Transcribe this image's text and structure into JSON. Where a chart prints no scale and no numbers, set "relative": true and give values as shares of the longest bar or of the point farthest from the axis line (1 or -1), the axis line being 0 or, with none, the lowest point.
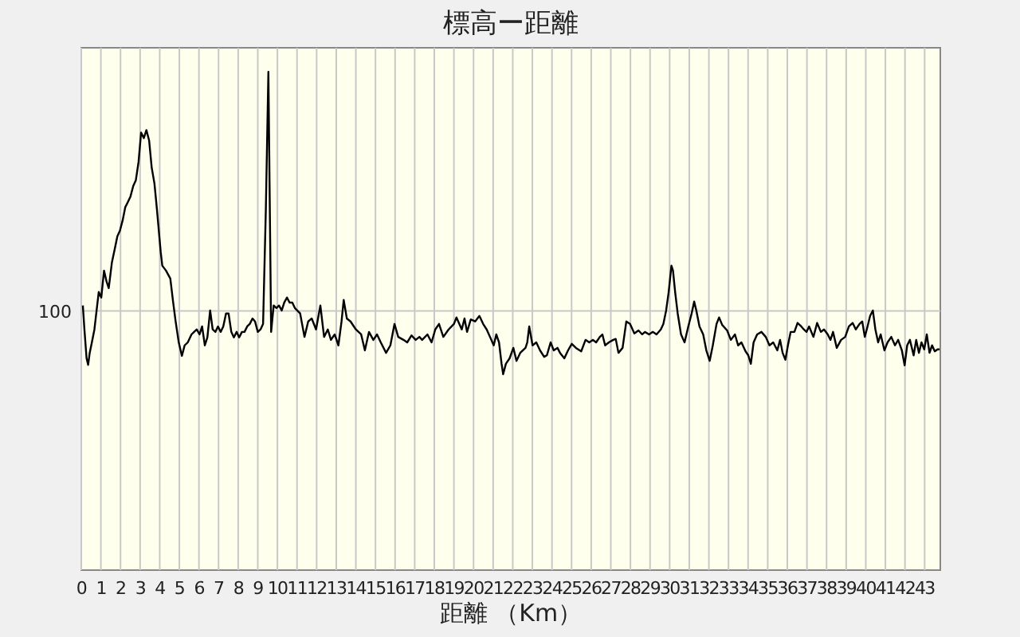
{
  "chart_data": {
    "type": "line",
    "title": "標高ー距離",
    "xlabel": "距離 （Km）",
    "relative": true,
    "grid": "x",
    "xlim": [
      0,
      43.8
    ],
    "xticks": [
      0,
      1,
      2,
      3,
      4,
      5,
      6,
      7,
      8,
      9,
      10,
      11,
      12,
      13,
      14,
      15,
      16,
      17,
      18,
      19,
      20,
      21,
      22,
      23,
      24,
      25,
      26,
      27,
      28,
      29,
      30,
      31,
      32,
      33,
      34,
      35,
      36,
      37,
      38,
      39,
      40,
      41,
      42,
      43
    ],
    "ref_lines": [
      {
        "axis": "y",
        "value": 0.52,
        "color": "#c8c8c8"
      }
    ],
    "annotations": [
      "100"
    ],
    "series": [
      {
        "color": "#000000",
        "x": [
          0.08,
          0.16,
          0.27,
          0.35,
          0.43,
          0.54,
          0.67,
          0.81,
          0.89,
          1.02,
          1.16,
          1.29,
          1.4,
          1.56,
          1.7,
          1.84,
          1.97,
          2.11,
          2.24,
          2.38,
          2.51,
          2.65,
          2.78,
          2.92,
          3.05,
          3.19,
          3.32,
          3.46,
          3.59,
          3.73,
          3.86,
          4.05,
          4.13,
          4.32,
          4.54,
          4.67,
          4.81,
          4.97,
          5.13,
          5.27,
          5.43,
          5.62,
          5.75,
          5.89,
          6.03,
          6.16,
          6.3,
          6.43,
          6.57,
          6.7,
          6.84,
          6.97,
          7.11,
          7.24,
          7.38,
          7.51,
          7.65,
          7.78,
          7.92,
          8.05,
          8.19,
          8.32,
          8.46,
          8.59,
          8.73,
          8.86,
          9.0,
          9.14,
          9.27,
          9.41,
          9.54,
          9.6,
          9.68,
          9.81,
          9.95,
          10.08,
          10.22,
          10.35,
          10.49,
          10.62,
          10.76,
          10.89,
          11.16,
          11.38,
          11.57,
          11.75,
          11.97,
          12.19,
          12.38,
          12.57,
          12.73,
          12.92,
          13.11,
          13.27,
          13.38,
          13.54,
          13.73,
          14.0,
          14.27,
          14.46,
          14.67,
          14.89,
          15.08,
          15.27,
          15.54,
          15.76,
          15.97,
          16.16,
          16.43,
          16.62,
          16.84,
          17.05,
          17.24,
          17.38,
          17.65,
          17.86,
          18.05,
          18.24,
          18.46,
          18.73,
          19.0,
          19.13,
          19.4,
          19.54,
          19.67,
          19.86,
          20.08,
          20.3,
          20.49,
          20.67,
          20.84,
          21.03,
          21.16,
          21.3,
          21.43,
          21.51,
          21.65,
          21.84,
          22.03,
          22.19,
          22.38,
          22.65,
          22.74,
          22.84,
          23.01,
          23.2,
          23.39,
          23.6,
          23.74,
          23.93,
          24.09,
          24.28,
          24.41,
          24.63,
          24.82,
          25.01,
          25.22,
          25.49,
          25.71,
          25.9,
          26.09,
          26.25,
          26.44,
          26.57,
          26.71,
          26.9,
          27.12,
          27.25,
          27.39,
          27.6,
          27.79,
          27.98,
          28.2,
          28.41,
          28.6,
          28.74,
          28.95,
          29.14,
          29.33,
          29.55,
          29.68,
          29.82,
          29.95,
          30.09,
          30.17,
          30.28,
          30.41,
          30.58,
          30.76,
          30.95,
          31.12,
          31.25,
          31.36,
          31.52,
          31.71,
          31.87,
          32.04,
          32.2,
          32.39,
          32.52,
          32.68,
          32.93,
          33.12,
          33.33,
          33.49,
          33.66,
          33.87,
          34.01,
          34.14,
          34.28,
          34.46,
          34.68,
          34.9,
          35.09,
          35.28,
          35.49,
          35.63,
          35.76,
          35.9,
          36.03,
          36.17,
          36.36,
          36.52,
          36.71,
          36.84,
          36.98,
          37.11,
          37.33,
          37.52,
          37.71,
          37.87,
          38.06,
          38.2,
          38.33,
          38.52,
          38.74,
          38.95,
          39.14,
          39.33,
          39.49,
          39.68,
          39.82,
          39.95,
          40.09,
          40.22,
          40.36,
          40.49,
          40.63,
          40.76,
          40.95,
          41.11,
          41.3,
          41.49,
          41.65,
          41.84,
          41.98,
          42.11,
          42.25,
          42.44,
          42.57,
          42.71,
          42.84,
          42.98,
          43.11,
          43.25,
          43.38,
          43.52,
          43.66,
          43.76
        ],
        "values": [
          0.531,
          0.483,
          0.425,
          0.412,
          0.436,
          0.457,
          0.483,
          0.531,
          0.558,
          0.547,
          0.601,
          0.579,
          0.566,
          0.617,
          0.643,
          0.67,
          0.681,
          0.702,
          0.728,
          0.739,
          0.75,
          0.771,
          0.782,
          0.819,
          0.878,
          0.867,
          0.883,
          0.862,
          0.808,
          0.776,
          0.723,
          0.638,
          0.611,
          0.601,
          0.585,
          0.542,
          0.499,
          0.457,
          0.43,
          0.451,
          0.457,
          0.473,
          0.478,
          0.483,
          0.473,
          0.489,
          0.451,
          0.467,
          0.521,
          0.483,
          0.478,
          0.489,
          0.478,
          0.489,
          0.515,
          0.515,
          0.478,
          0.467,
          0.478,
          0.467,
          0.478,
          0.478,
          0.489,
          0.494,
          0.505,
          0.499,
          0.478,
          0.483,
          0.494,
          0.723,
          1.0,
          0.776,
          0.478,
          0.531,
          0.526,
          0.531,
          0.521,
          0.537,
          0.547,
          0.537,
          0.537,
          0.526,
          0.515,
          0.468,
          0.499,
          0.505,
          0.483,
          0.531,
          0.468,
          0.483,
          0.462,
          0.473,
          0.451,
          0.499,
          0.542,
          0.505,
          0.499,
          0.483,
          0.473,
          0.441,
          0.478,
          0.462,
          0.473,
          0.457,
          0.436,
          0.451,
          0.494,
          0.468,
          0.462,
          0.457,
          0.471,
          0.462,
          0.468,
          0.462,
          0.473,
          0.457,
          0.483,
          0.494,
          0.468,
          0.483,
          0.494,
          0.507,
          0.483,
          0.505,
          0.478,
          0.503,
          0.499,
          0.51,
          0.494,
          0.483,
          0.468,
          0.451,
          0.473,
          0.457,
          0.414,
          0.393,
          0.414,
          0.425,
          0.446,
          0.42,
          0.436,
          0.446,
          0.457,
          0.489,
          0.451,
          0.457,
          0.441,
          0.428,
          0.431,
          0.457,
          0.441,
          0.446,
          0.436,
          0.425,
          0.441,
          0.454,
          0.446,
          0.439,
          0.462,
          0.457,
          0.462,
          0.457,
          0.468,
          0.473,
          0.451,
          0.457,
          0.462,
          0.464,
          0.436,
          0.446,
          0.499,
          0.494,
          0.475,
          0.481,
          0.473,
          0.478,
          0.473,
          0.478,
          0.473,
          0.483,
          0.494,
          0.521,
          0.558,
          0.611,
          0.601,
          0.558,
          0.515,
          0.473,
          0.457,
          0.489,
          0.515,
          0.539,
          0.521,
          0.489,
          0.473,
          0.441,
          0.42,
          0.451,
          0.494,
          0.507,
          0.492,
          0.481,
          0.462,
          0.473,
          0.451,
          0.457,
          0.439,
          0.431,
          0.414,
          0.457,
          0.473,
          0.478,
          0.468,
          0.451,
          0.457,
          0.441,
          0.462,
          0.436,
          0.422,
          0.451,
          0.478,
          0.478,
          0.496,
          0.489,
          0.483,
          0.478,
          0.489,
          0.468,
          0.496,
          0.478,
          0.483,
          0.473,
          0.462,
          0.478,
          0.446,
          0.462,
          0.468,
          0.489,
          0.496,
          0.483,
          0.494,
          0.499,
          0.468,
          0.489,
          0.51,
          0.521,
          0.483,
          0.457,
          0.473,
          0.441,
          0.457,
          0.468,
          0.451,
          0.462,
          0.441,
          0.411,
          0.451,
          0.462,
          0.431,
          0.462,
          0.436,
          0.457,
          0.443,
          0.473,
          0.436,
          0.451,
          0.439,
          0.443,
          0.443
        ]
      }
    ]
  }
}
